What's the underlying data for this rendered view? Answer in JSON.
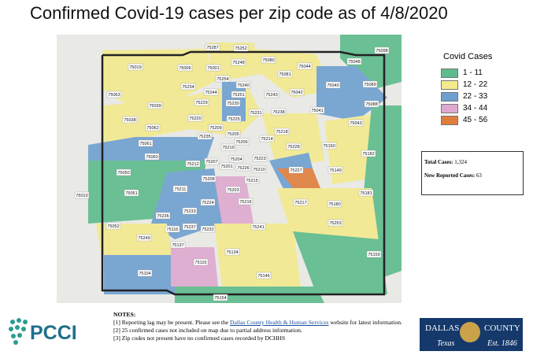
{
  "title": "Confirmed Covid-19 cases per zip code as of 4/8/2020",
  "zips": [
    "75287",
    "75252",
    "75098",
    "75248",
    "75080",
    "75048",
    "75019",
    "75006",
    "75001",
    "75044",
    "75081",
    "75254",
    "75040",
    "75089",
    "75234",
    "75240",
    "75042",
    "75063",
    "75244",
    "75251",
    "75243",
    "75088",
    "75039",
    "75229",
    "75230",
    "75041",
    "75231",
    "75238",
    "75038",
    "75220",
    "75225",
    "75043",
    "75062",
    "75209",
    "75218",
    "75235",
    "75205",
    "75214",
    "75061",
    "75219",
    "75206",
    "75228",
    "75150",
    "75182",
    "75060",
    "75204",
    "75223",
    "75207",
    "75212",
    "75201",
    "75226",
    "75210",
    "75227",
    "75149",
    "75050",
    "75208",
    "75215",
    "75211",
    "75203",
    "75051",
    "76010",
    "75181",
    "75224",
    "75216",
    "75217",
    "75180",
    "75233",
    "75236",
    "75253",
    "75052",
    "75116",
    "75237",
    "75232",
    "75241",
    "75249",
    "75137",
    "75134",
    "75159",
    "75115",
    "75104",
    "75146",
    "75154"
  ],
  "legend": {
    "title": "Covid Cases",
    "items": [
      {
        "label": "1 - 11",
        "color": "#5dbb8c"
      },
      {
        "label": "12 - 22",
        "color": "#f4ea8e"
      },
      {
        "label": "22 - 33",
        "color": "#6f9fd0"
      },
      {
        "label": "34 - 44",
        "color": "#dfa9cf"
      },
      {
        "label": "45 - 56",
        "color": "#e07d3c"
      }
    ]
  },
  "stats": [
    {
      "label": "Total Cases:",
      "value": "1,324"
    },
    {
      "label": "New Reported Cases:",
      "value": "63"
    }
  ],
  "notes": {
    "heading": "NOTES:",
    "items": [
      {
        "text": "[1] Reporting lag may be present. Please see the ",
        "link": "Dallas County Health & Human Services",
        "after": " website for latest information."
      },
      {
        "text": "[2] 25 confirmed cases not included on map due to partial address information."
      },
      {
        "text": "[3] Zip codes not present have no confirmed cases recorded by DCHHS"
      }
    ]
  },
  "logos": {
    "pcci": "PCCI",
    "county": {
      "line1": "DALLAS",
      "line2": "COUNTY",
      "state": "Texas",
      "est": "Est. 1846"
    }
  }
}
